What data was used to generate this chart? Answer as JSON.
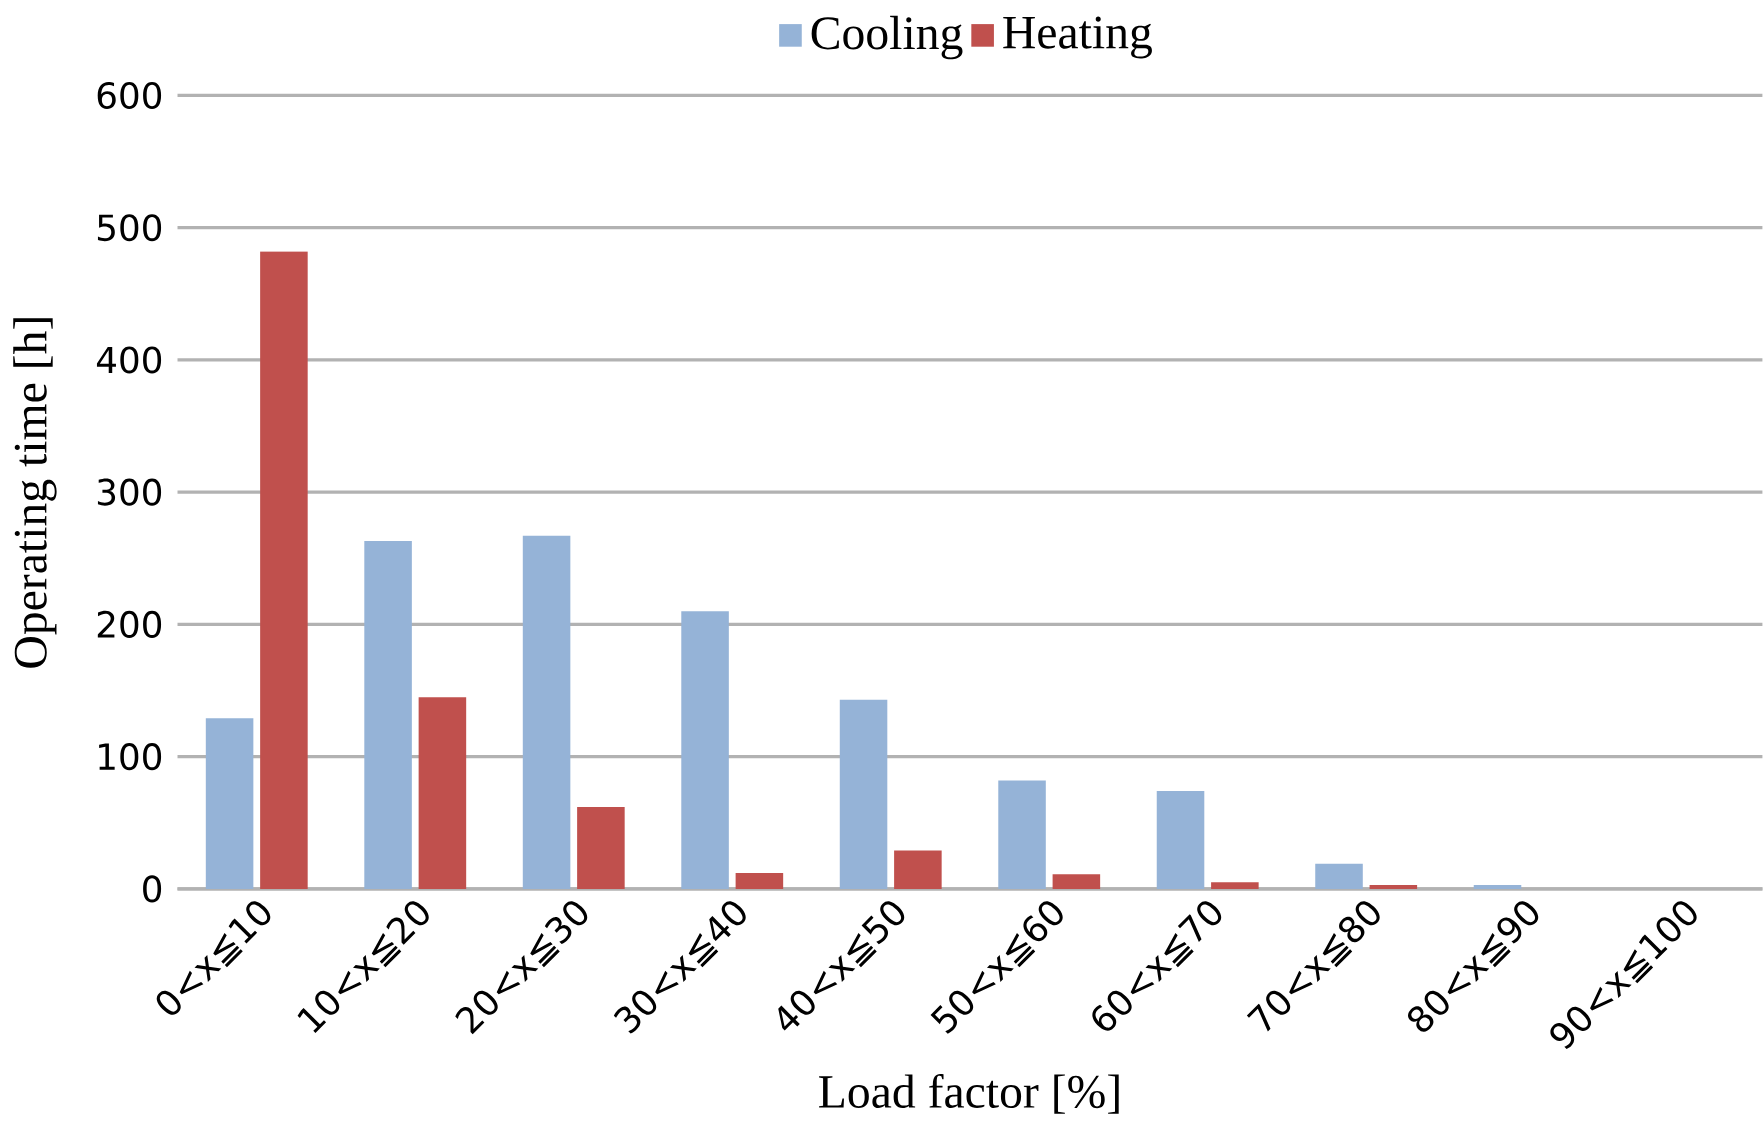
{
  "chart_data": {
    "type": "bar",
    "xlabel": "Load factor [%]",
    "ylabel": "Operating time [h]",
    "categories": [
      "0<x≦10",
      "10<x≦20",
      "20<x≦30",
      "30<x≦40",
      "40<x≦50",
      "50<x≦60",
      "60<x≦70",
      "70<x≦80",
      "80<x≦90",
      "90<x≦100"
    ],
    "series": [
      {
        "name": "Cooling",
        "color": "#95b3d7",
        "values": [
          129,
          263,
          267,
          210,
          143,
          82,
          74,
          19,
          3,
          0
        ]
      },
      {
        "name": "Heating",
        "color": "#c0504d",
        "values": [
          482,
          145,
          62,
          12,
          29,
          11,
          5,
          3,
          0,
          0
        ]
      }
    ],
    "ylim": [
      0,
      600
    ],
    "yticks": [
      0,
      100,
      200,
      300,
      400,
      500,
      600
    ],
    "grid": "y",
    "legend": "top"
  }
}
